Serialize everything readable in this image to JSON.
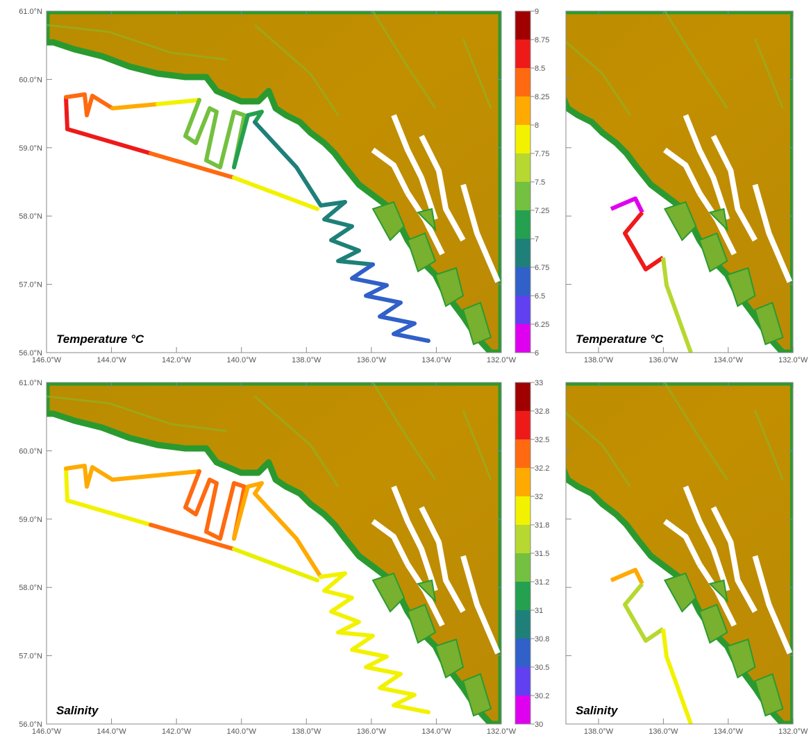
{
  "panels": [
    {
      "title": "Temperature °C",
      "xticks": [
        "146.0°W",
        "144.0°W",
        "142.0°W",
        "140.0°W",
        "138.0°W",
        "136.0°W",
        "134.0°W",
        "132.0°W"
      ],
      "yticks": [
        "61.0°N",
        "60.0°N",
        "59.0°N",
        "58.0°N",
        "57.0°N",
        "56.0°N"
      ]
    },
    {
      "title": "Temperature °C",
      "xticks": [
        "138.0°W",
        "136.0°W",
        "134.0°W",
        "132.0°W"
      ]
    },
    {
      "title": "Salinity",
      "xticks": [
        "146.0°W",
        "144.0°W",
        "142.0°W",
        "140.0°W",
        "138.0°W",
        "136.0°W",
        "134.0°W",
        "132.0°W"
      ],
      "yticks": [
        "61.0°N",
        "60.0°N",
        "59.0°N",
        "58.0°N",
        "57.0°N",
        "56.0°N"
      ]
    },
    {
      "title": "Salinity",
      "xticks": [
        "138.0°W",
        "136.0°W",
        "134.0°W",
        "132.0°W"
      ]
    }
  ],
  "colorbars": [
    {
      "labels": [
        9,
        8.75,
        8.5,
        8.25,
        8,
        7.75,
        7.5,
        7.25,
        7,
        6.75,
        6.5,
        6.25,
        6
      ]
    },
    {
      "labels": [
        33,
        32.8,
        32.5,
        32.2,
        32,
        31.8,
        31.5,
        31.2,
        31,
        30.8,
        30.5,
        30.2,
        30
      ]
    }
  ],
  "colors": [
    "#a00000",
    "#ee1a1a",
    "#ff6a10",
    "#ffaa00",
    "#f2f200",
    "#b6d830",
    "#74c040",
    "#24a050",
    "#1e8078",
    "#3060c8",
    "#6040f0",
    "#e000f0"
  ]
}
